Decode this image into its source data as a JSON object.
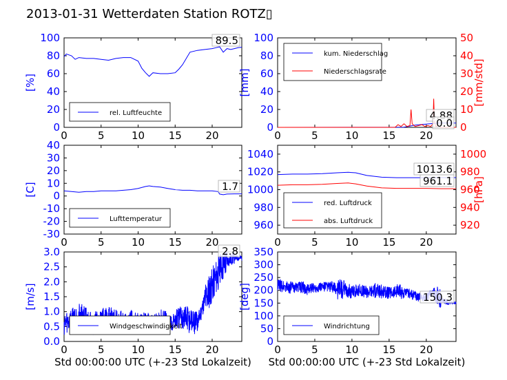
{
  "title": "2013-01-31 Wetterdaten Station ROTZ▯",
  "colors": {
    "blue": "#0000ff",
    "red": "#ff0000",
    "black": "#000000"
  },
  "chart_data": [
    {
      "type": "line",
      "panel": "humidity",
      "xlim": [
        0,
        24
      ],
      "ylim": [
        0,
        100
      ],
      "xticks": [
        0,
        5,
        10,
        15,
        20
      ],
      "yticks": [
        0,
        20,
        40,
        60,
        80,
        100
      ],
      "ylabel": "[%]",
      "legend": "bottom-left",
      "series": [
        {
          "name": "rel. Luftfeuchte",
          "color": "#0000ff",
          "x": [
            0,
            0.3,
            1,
            1.5,
            2,
            3,
            4,
            5,
            6,
            7,
            8,
            9,
            10,
            10.5,
            11,
            11.5,
            12,
            13,
            14,
            15,
            15.5,
            16,
            17,
            18,
            19,
            20,
            20.5,
            21,
            21.5,
            22,
            22.5,
            23,
            23.5,
            24
          ],
          "y": [
            79,
            82,
            80,
            76,
            78,
            77,
            77,
            76,
            75,
            77,
            78,
            78,
            74,
            66,
            61,
            57,
            61,
            60,
            60,
            61,
            65,
            70,
            84,
            86,
            87,
            88,
            89,
            90,
            84,
            88,
            87,
            88,
            89,
            89.5
          ]
        }
      ],
      "value_label": "89.5"
    },
    {
      "type": "line",
      "panel": "precipitation",
      "xlim": [
        0,
        24
      ],
      "ylim": [
        0,
        100
      ],
      "y2lim": [
        0,
        50
      ],
      "xticks": [
        0,
        5,
        10,
        15,
        20
      ],
      "yticks": [
        0,
        20,
        40,
        60,
        80,
        100
      ],
      "y2ticks": [
        0,
        10,
        20,
        30,
        40,
        50
      ],
      "ylabel": "[mm]",
      "y2label": "[mm/std]",
      "legend": "top-left",
      "series": [
        {
          "name": "kum. Niederschlag",
          "color": "#0000ff",
          "axis": "left",
          "x": [
            0,
            17,
            17.8,
            18.5,
            19.5,
            20.5,
            21.5,
            24
          ],
          "y": [
            0,
            0.2,
            1.5,
            2.5,
            3.2,
            4.0,
            4.88,
            4.88
          ]
        },
        {
          "name": "Niederschlagsrate",
          "color": "#ff0000",
          "axis": "right",
          "x": [
            0,
            15.8,
            16.2,
            16.6,
            17,
            17.4,
            17.8,
            17.95,
            18.1,
            18.5,
            19,
            19.4,
            19.8,
            20.2,
            20.6,
            20.9,
            21.0,
            21.1,
            21.3,
            21.6,
            22,
            24
          ],
          "y": [
            0,
            0,
            1.5,
            0.5,
            2,
            0.5,
            1,
            10,
            2,
            0.5,
            1,
            1.5,
            0.5,
            1,
            0.5,
            2,
            16,
            3,
            0.5,
            1,
            0,
            0
          ]
        }
      ],
      "value_labels": [
        "4.88",
        "0.0"
      ]
    },
    {
      "type": "line",
      "panel": "temperature",
      "xlim": [
        0,
        24
      ],
      "ylim": [
        -30,
        40
      ],
      "xticks": [
        0,
        5,
        10,
        15,
        20
      ],
      "yticks": [
        -30,
        -20,
        -10,
        0,
        10,
        20,
        30,
        40
      ],
      "ylabel": "[C]",
      "legend": "bottom-left",
      "series": [
        {
          "name": "Lufttemperatur",
          "color": "#0000ff",
          "x": [
            0,
            1,
            2,
            3,
            4,
            5,
            6,
            7,
            8,
            9,
            10,
            11,
            11.5,
            12,
            13,
            14,
            15,
            16,
            17,
            18,
            19,
            20,
            20.8,
            21,
            21.5,
            22,
            23,
            24
          ],
          "y": [
            4,
            3.5,
            3,
            3.5,
            3.5,
            4,
            4,
            4,
            4.5,
            5,
            6,
            7.5,
            8,
            7.5,
            7,
            6,
            5,
            4.5,
            4.5,
            4,
            4,
            4,
            3.5,
            1.5,
            1.0,
            1.5,
            1.7,
            1.7
          ]
        }
      ],
      "value_label": "1.7"
    },
    {
      "type": "line",
      "panel": "pressure",
      "xlim": [
        0,
        24
      ],
      "ylim": [
        950,
        1050
      ],
      "y2lim": [
        910,
        1010
      ],
      "xticks": [
        0,
        5,
        10,
        15,
        20
      ],
      "yticks": [
        960,
        980,
        1000,
        1020,
        1040
      ],
      "y2ticks": [
        920,
        940,
        960,
        980,
        1000
      ],
      "ylabel": "",
      "y2label": "[hPa]",
      "legend": "bottom-left",
      "series": [
        {
          "name": "red. Luftdruck",
          "color": "#0000ff",
          "axis": "left",
          "x": [
            0,
            2,
            4,
            6,
            8,
            9.5,
            10.5,
            12,
            14,
            16,
            18,
            20,
            22,
            24
          ],
          "y": [
            1017,
            1017.5,
            1017.5,
            1018,
            1019,
            1019.5,
            1019,
            1016,
            1014,
            1013.5,
            1013.5,
            1013.5,
            1013.6,
            1013.6
          ]
        },
        {
          "name": "abs. Luftdruck",
          "color": "#ff0000",
          "axis": "right",
          "x": [
            0,
            2,
            4,
            6,
            8,
            9.5,
            10.5,
            12,
            14,
            16,
            18,
            20,
            22,
            24
          ],
          "y": [
            965,
            965.5,
            965.5,
            966,
            967,
            967.5,
            966.5,
            964,
            962,
            961.5,
            961.5,
            961.5,
            961.1,
            961.1
          ]
        }
      ],
      "value_labels": [
        "1013.6",
        "961.1"
      ]
    },
    {
      "type": "line",
      "panel": "wind-speed",
      "xlim": [
        0,
        24
      ],
      "ylim": [
        0,
        3.0
      ],
      "xticks": [
        0,
        5,
        10,
        15,
        20
      ],
      "yticks": [
        0.0,
        0.5,
        1.0,
        1.5,
        2.0,
        2.5,
        3.0
      ],
      "ylabel": "[m/s]",
      "xlabel": "Std 00:00:00 UTC (+-23 Std Lokalzeit)",
      "legend": "bottom-left",
      "series": [
        {
          "name": "Windgeschwindigkeit",
          "color": "#0000ff",
          "base": [
            0.6,
            0.7,
            0.8,
            0.7,
            0.6,
            0.7,
            0.8,
            0.7,
            0.6,
            0.7,
            0.6,
            0.7,
            0.6,
            0.7,
            0.6,
            0.7,
            0.8,
            0.7,
            0.6,
            1.4,
            1.9,
            2.4,
            2.7,
            2.8,
            2.8
          ],
          "noise": [
            0.4,
            0.5,
            0.5,
            0.4,
            0.4,
            0.4,
            0.4,
            0.4,
            0.3,
            0.4,
            0.3,
            0.3,
            0.3,
            0.4,
            0.3,
            0.4,
            0.5,
            0.4,
            0.3,
            0.6,
            0.6,
            0.5,
            0.2,
            0.1,
            0.1
          ]
        }
      ],
      "value_label": "2.8"
    },
    {
      "type": "line",
      "panel": "wind-direction",
      "xlim": [
        0,
        24
      ],
      "ylim": [
        0,
        350
      ],
      "xticks": [
        0,
        5,
        10,
        15,
        20
      ],
      "yticks": [
        0,
        50,
        100,
        150,
        200,
        250,
        300,
        350
      ],
      "ylabel": "[deg]",
      "xlabel": "Std 00:00:00 UTC (+-23 Std Lokalzeit)",
      "legend": "bottom-left",
      "series": [
        {
          "name": "Windrichtung",
          "color": "#0000ff",
          "base": [
            220,
            215,
            210,
            215,
            205,
            210,
            215,
            215,
            205,
            200,
            195,
            200,
            195,
            200,
            195,
            190,
            195,
            190,
            185,
            175,
            170,
            200,
            160,
            152,
            150
          ],
          "noise": [
            25,
            25,
            20,
            25,
            20,
            20,
            20,
            25,
            40,
            30,
            25,
            25,
            25,
            30,
            25,
            25,
            30,
            20,
            20,
            15,
            15,
            40,
            10,
            5,
            5
          ]
        }
      ],
      "value_label": "150.3"
    }
  ]
}
